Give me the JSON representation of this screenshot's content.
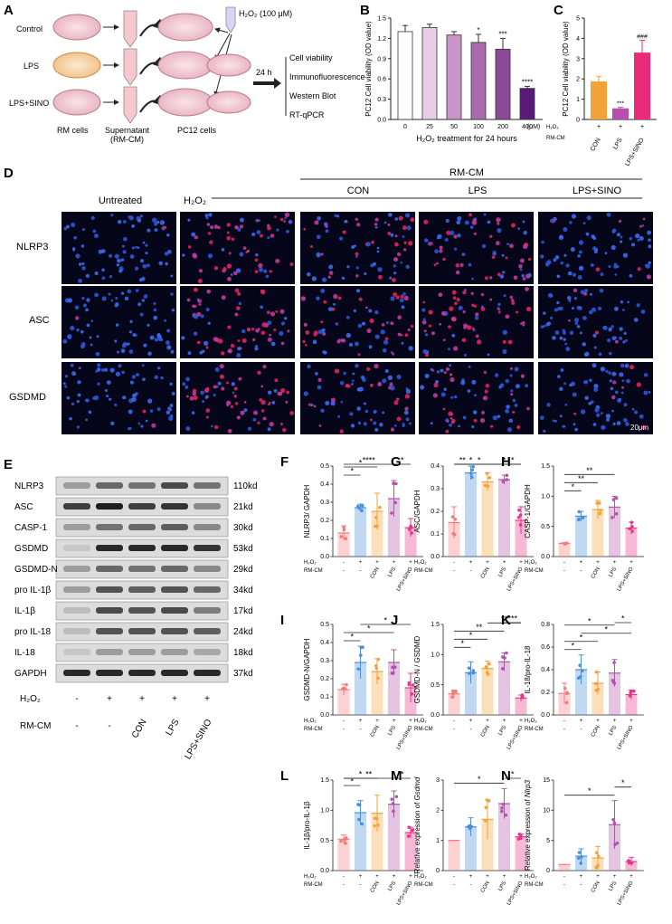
{
  "panelA": {
    "letter": "A",
    "groups": [
      "Control",
      "LPS",
      "LPS+SINO"
    ],
    "h2o2": "H₂O₂ (100 μM)",
    "time": "24 h",
    "assays": [
      "Cell viability",
      "Immunofluorescence",
      "Western Blot",
      "RT-qPCR"
    ],
    "cell_labels": [
      "RM cells",
      "Supernatant\n(RM-CM)",
      "PC12 cells"
    ]
  },
  "panelB": {
    "letter": "B"
  },
  "panelC": {
    "letter": "C"
  },
  "panelD": {
    "letter": "D",
    "header_rmcm": "RM-CM",
    "columns": [
      "Untreated",
      "H₂O₂",
      "CON",
      "LPS",
      "LPS+SINO"
    ],
    "rows": [
      "NLRP3",
      "ASC",
      "GSDMD"
    ],
    "scale_bar": "20μm"
  },
  "panelE": {
    "letter": "E",
    "proteins": [
      "NLRP3",
      "ASC",
      "CASP-1",
      "GSDMD",
      "GSDMD-N",
      "pro IL-1β",
      "IL-1β",
      "pro IL-18",
      "IL-18",
      "GAPDH"
    ],
    "sizes": [
      "110kd",
      "21kd",
      "30kd",
      "53kd",
      "29kd",
      "34kd",
      "17kd",
      "24kd",
      "18kd",
      "37kd"
    ],
    "h2o2_label": "H₂O₂",
    "h2o2_signs": [
      "-",
      "+",
      "+",
      "+",
      "+"
    ],
    "rmcm_label": "RM-CM",
    "rmcm_values": [
      "-",
      "-",
      "CON",
      "LPS",
      "LPS+SINO"
    ]
  },
  "chart_data": [
    {
      "id": "B",
      "type": "bar",
      "ylabel": "PC12 Cell viability (OD value)",
      "xlabel": "H₂O₂ treatment for 24 hours",
      "unit": "(μM)",
      "categories": [
        "0",
        "25",
        "50",
        "100",
        "200",
        "400"
      ],
      "values": [
        1.3,
        1.36,
        1.25,
        1.14,
        1.04,
        0.46
      ],
      "errors": [
        0.09,
        0.05,
        0.05,
        0.12,
        0.16,
        0.03
      ],
      "annotations": [
        "",
        "",
        "",
        "*",
        "***",
        "****"
      ],
      "colors": [
        "#ffffff",
        "#e7cde6",
        "#c795c8",
        "#a96aaf",
        "#8a4a97",
        "#5a1b78"
      ],
      "ylim": [
        0,
        1.5
      ],
      "yticks": [
        0.0,
        0.3,
        0.6,
        0.9,
        1.2,
        1.5
      ]
    },
    {
      "id": "C",
      "type": "bar",
      "ylabel": "PC12 Cell viability (OD value)",
      "categories": [
        "CON",
        "LPS",
        "LPS+SINO"
      ],
      "values": [
        1.88,
        0.55,
        3.3
      ],
      "errors": [
        0.25,
        0.05,
        0.6
      ],
      "annotations": [
        "",
        "***",
        "###"
      ],
      "colors": [
        "#f2a238",
        "#b64fb0",
        "#ea2b7a"
      ],
      "ylim": [
        0,
        5
      ],
      "yticks": [
        0,
        1,
        2,
        3,
        4,
        5
      ],
      "h2o2_signs": [
        "+",
        "+",
        "+"
      ],
      "row_labels": [
        "H₂O₂",
        "RM-CM"
      ]
    },
    {
      "id": "F",
      "type": "bar",
      "ylabel": "NLRP3/ GAPDH",
      "values": [
        0.13,
        0.27,
        0.25,
        0.32,
        0.16
      ],
      "errors": [
        0.04,
        0.02,
        0.1,
        0.1,
        0.05
      ],
      "ylim": [
        0,
        0.5
      ],
      "yticks": [
        0.0,
        0.1,
        0.2,
        0.3,
        0.4,
        0.5
      ],
      "sig": [
        {
          "a": 0,
          "b": 1,
          "t": "*"
        },
        {
          "a": 0,
          "b": 2,
          "t": "*"
        },
        {
          "a": 0,
          "b": 3,
          "t": "****"
        },
        {
          "a": 3,
          "b": 4,
          "t": "*"
        }
      ]
    },
    {
      "id": "G",
      "type": "bar",
      "ylabel": "ASC/GAPDH",
      "values": [
        0.15,
        0.37,
        0.33,
        0.34,
        0.16
      ],
      "errors": [
        0.07,
        0.03,
        0.04,
        0.02,
        0.06
      ],
      "ylim": [
        0,
        0.4
      ],
      "yticks": [
        0.0,
        0.1,
        0.2,
        0.3,
        0.4
      ],
      "sig": [
        {
          "a": 0,
          "b": 1,
          "t": "**"
        },
        {
          "a": 0,
          "b": 2,
          "t": "*"
        },
        {
          "a": 0,
          "b": 3,
          "t": "*"
        },
        {
          "a": 2,
          "b": 4,
          "t": "*"
        },
        {
          "a": 3,
          "b": 4,
          "t": "*"
        }
      ]
    },
    {
      "id": "H",
      "type": "bar",
      "ylabel": "CASP-1/GAPDH",
      "values": [
        0.22,
        0.67,
        0.78,
        0.82,
        0.47
      ],
      "errors": [
        0.01,
        0.08,
        0.15,
        0.18,
        0.1
      ],
      "ylim": [
        0,
        1.5
      ],
      "yticks": [
        0.0,
        0.5,
        1.0,
        1.5
      ],
      "sig": [
        {
          "a": 0,
          "b": 1,
          "t": "*"
        },
        {
          "a": 0,
          "b": 2,
          "t": "**"
        },
        {
          "a": 0,
          "b": 3,
          "t": "**"
        }
      ]
    },
    {
      "id": "I",
      "type": "bar",
      "ylabel": "GSDMD-N/GAPDH",
      "values": [
        0.14,
        0.29,
        0.24,
        0.29,
        0.15
      ],
      "errors": [
        0.03,
        0.09,
        0.07,
        0.07,
        0.08
      ],
      "ylim": [
        0,
        0.5
      ],
      "yticks": [
        0.0,
        0.1,
        0.2,
        0.3,
        0.4,
        0.5
      ],
      "sig": [
        {
          "a": 0,
          "b": 1,
          "t": "*"
        },
        {
          "a": 0,
          "b": 3,
          "t": "*"
        },
        {
          "a": 1,
          "b": 4,
          "t": "*"
        }
      ]
    },
    {
      "id": "J",
      "type": "bar",
      "ylabel": "GSDMD-N / GSDMD",
      "values": [
        0.35,
        0.7,
        0.77,
        0.88,
        0.28
      ],
      "errors": [
        0.06,
        0.18,
        0.12,
        0.15,
        0.05
      ],
      "ylim": [
        0,
        1.5
      ],
      "yticks": [
        0.0,
        0.5,
        1.0,
        1.5
      ],
      "sig": [
        {
          "a": 0,
          "b": 1,
          "t": "*"
        },
        {
          "a": 0,
          "b": 2,
          "t": "*"
        },
        {
          "a": 0,
          "b": 3,
          "t": "**"
        },
        {
          "a": 2,
          "b": 4,
          "t": "**"
        },
        {
          "a": 3,
          "b": 4,
          "t": "***"
        }
      ]
    },
    {
      "id": "K",
      "type": "bar",
      "ylabel": "IL-18/pro-IL-18",
      "values": [
        0.19,
        0.4,
        0.28,
        0.37,
        0.18
      ],
      "errors": [
        0.09,
        0.13,
        0.1,
        0.12,
        0.04
      ],
      "ylim": [
        0,
        0.8
      ],
      "yticks": [
        0.0,
        0.2,
        0.4,
        0.6,
        0.8
      ],
      "sig": [
        {
          "a": 0,
          "b": 1,
          "t": "*"
        },
        {
          "a": 0,
          "b": 2,
          "t": "*"
        },
        {
          "a": 1,
          "b": 4,
          "t": "*"
        },
        {
          "a": 0,
          "b": 3,
          "t": "*"
        },
        {
          "a": 3,
          "b": 4,
          "t": "*"
        }
      ]
    },
    {
      "id": "L",
      "type": "bar",
      "ylabel": "IL-1β/pro-IL-1β",
      "values": [
        0.52,
        0.96,
        0.95,
        1.1,
        0.63
      ],
      "errors": [
        0.07,
        0.2,
        0.3,
        0.22,
        0.09
      ],
      "ylim": [
        0,
        1.5
      ],
      "yticks": [
        0.0,
        0.5,
        1.0,
        1.5
      ],
      "sig": [
        {
          "a": 0,
          "b": 1,
          "t": "*"
        },
        {
          "a": 0,
          "b": 2,
          "t": "*"
        },
        {
          "a": 0,
          "b": 3,
          "t": "**"
        },
        {
          "a": 3,
          "b": 4,
          "t": "*"
        }
      ]
    },
    {
      "id": "M",
      "type": "bar",
      "ylabel_prefix": "Relative expression of ",
      "ylabel_gene": "Gsdmd",
      "values": [
        1.0,
        1.45,
        1.7,
        2.22,
        1.12
      ],
      "errors": [
        0.0,
        0.3,
        0.65,
        0.5,
        0.1
      ],
      "ylim": [
        0,
        3
      ],
      "yticks": [
        0,
        1,
        2,
        3
      ],
      "sig": [
        {
          "a": 0,
          "b": 3,
          "t": "*"
        },
        {
          "a": 3,
          "b": 4,
          "t": "*"
        }
      ]
    },
    {
      "id": "N",
      "type": "bar",
      "ylabel_prefix": "Relative expression of ",
      "ylabel_gene": "Nlrp3",
      "values": [
        1.0,
        2.4,
        2.1,
        7.6,
        1.5
      ],
      "errors": [
        0.0,
        1.2,
        1.9,
        4.0,
        0.7
      ],
      "ylim": [
        0,
        15
      ],
      "yticks": [
        0,
        5,
        10,
        15
      ],
      "sig": [
        {
          "a": 0,
          "b": 3,
          "t": "*"
        },
        {
          "a": 3,
          "b": 4,
          "t": "*"
        }
      ]
    }
  ],
  "small_chart_common": {
    "colors": [
      "#f47a7a",
      "#4c8fd6",
      "#f2a238",
      "#b64fb0",
      "#e8358a"
    ],
    "categories": [
      "-",
      "-",
      "CON",
      "LPS",
      "LPS+SINO"
    ],
    "h2o2_signs": [
      "-",
      "+",
      "+",
      "+",
      "+"
    ],
    "row_labels": [
      "H₂O₂",
      "RM-CM"
    ]
  }
}
